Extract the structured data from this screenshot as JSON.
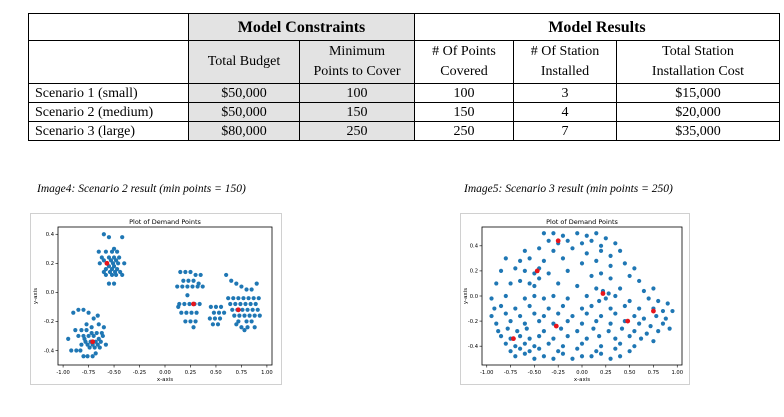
{
  "table": {
    "group_headers": {
      "constraints": "Model Constraints",
      "results": "Model Results"
    },
    "columns": [
      {
        "lines": [
          "Total Budget"
        ]
      },
      {
        "lines": [
          "Minimum",
          "Points to Cover"
        ]
      },
      {
        "lines": [
          "# Of Points",
          "Covered"
        ]
      },
      {
        "lines": [
          "# Of Station",
          "Installed"
        ]
      },
      {
        "lines": [
          "Total Station",
          "Installation Cost"
        ]
      }
    ],
    "rows": [
      {
        "label": "Scenario 1 (small)",
        "cells": [
          "$50,000",
          "100",
          "100",
          "3",
          "$15,000"
        ]
      },
      {
        "label": "Scenario 2 (medium)",
        "cells": [
          "$50,000",
          "150",
          "150",
          "4",
          "$20,000"
        ]
      },
      {
        "label": "Scenario 3 (large)",
        "cells": [
          "$80,000",
          "250",
          "250",
          "7",
          "$35,000"
        ]
      }
    ]
  },
  "captions": {
    "left": "Image4: Scenario 2 result (min points = 150)",
    "right": "Image5: Scenario 3 result (min points = 250)"
  },
  "colors": {
    "point": "#1f77b4",
    "station": "#e8151b",
    "grey_header": "#e3e3e3"
  },
  "chart_data": [
    {
      "type": "scatter",
      "title": "Plot of Demand Points",
      "xlabel": "x-axis",
      "ylabel": "y-axis",
      "xlim": [
        -1.05,
        1.05
      ],
      "ylim": [
        -0.5,
        0.45
      ],
      "x_ticks": [
        "-1.00",
        "-0.75",
        "-0.50",
        "-0.25",
        "0.00",
        "0.25",
        "0.50",
        "0.75",
        "1.00"
      ],
      "x_tick_values": [
        -1,
        -0.75,
        -0.5,
        -0.25,
        0,
        0.25,
        0.5,
        0.75,
        1
      ],
      "y_ticks": [
        "0.4",
        "0.2",
        "0.0",
        "-0.2",
        "-0.4"
      ],
      "y_tick_values": [
        0.4,
        0.2,
        0,
        -0.2,
        -0.4
      ],
      "series": [
        {
          "x": [
            -0.6,
            -0.55,
            -0.42,
            -0.5,
            -0.65,
            -0.58,
            -0.52,
            -0.47,
            -0.62,
            -0.55,
            -0.5,
            -0.45,
            -0.6,
            -0.53,
            -0.48,
            -0.64,
            -0.57,
            -0.51,
            -0.46,
            -0.4,
            -0.55,
            -0.5,
            -0.58,
            -0.52,
            -0.47,
            -0.6,
            -0.54,
            -0.49,
            -0.44,
            -0.58,
            -0.52,
            -0.48,
            -0.42,
            -0.55,
            -0.5,
            -0.9,
            -0.85,
            -0.8,
            -0.75,
            -0.7,
            -0.65,
            -0.6,
            -0.88,
            -0.82,
            -0.77,
            -0.72,
            -0.67,
            -0.62,
            -0.85,
            -0.8,
            -0.75,
            -0.7,
            -0.65,
            -0.78,
            -0.73,
            -0.68,
            -0.63,
            -0.82,
            -0.76,
            -0.71,
            -0.66,
            -0.95,
            -0.92,
            -0.87,
            -0.83,
            -0.74,
            -0.69,
            -0.64,
            -0.58,
            -0.8,
            -0.76,
            -0.71,
            -0.68,
            -0.61,
            -0.79,
            -0.72,
            -0.77,
            -0.66,
            0.15,
            0.2,
            0.25,
            0.3,
            0.35,
            0.18,
            0.23,
            0.28,
            0.33,
            0.12,
            0.17,
            0.22,
            0.27,
            0.32,
            0.37,
            0.14,
            0.19,
            0.24,
            0.29,
            0.34,
            0.16,
            0.21,
            0.26,
            0.31,
            0.2,
            0.25,
            0.3,
            0.13,
            0.22,
            0.28,
            0.45,
            0.5,
            0.55,
            0.48,
            0.53,
            0.58,
            0.44,
            0.49,
            0.54,
            0.47,
            0.52,
            0.6,
            0.65,
            0.7,
            0.75,
            0.8,
            0.85,
            0.9,
            0.62,
            0.67,
            0.72,
            0.77,
            0.82,
            0.87,
            0.92,
            0.64,
            0.69,
            0.74,
            0.79,
            0.84,
            0.89,
            0.66,
            0.71,
            0.76,
            0.81,
            0.86,
            0.91,
            0.68,
            0.73,
            0.78,
            0.83,
            0.88,
            0.93,
            0.72,
            0.8,
            0.85,
            0.75,
            0.81,
            0.88,
            0.7,
            0.78
          ],
          "y": [
            0.4,
            0.38,
            0.38,
            0.3,
            0.28,
            0.28,
            0.28,
            0.28,
            0.24,
            0.24,
            0.24,
            0.24,
            0.22,
            0.22,
            0.22,
            0.2,
            0.2,
            0.2,
            0.2,
            0.2,
            0.18,
            0.18,
            0.16,
            0.16,
            0.16,
            0.14,
            0.14,
            0.14,
            0.14,
            0.12,
            0.12,
            0.12,
            0.12,
            0.06,
            0.06,
            -0.14,
            -0.12,
            -0.12,
            -0.14,
            -0.18,
            -0.22,
            -0.24,
            -0.26,
            -0.26,
            -0.26,
            -0.28,
            -0.28,
            -0.28,
            -0.3,
            -0.3,
            -0.3,
            -0.3,
            -0.32,
            -0.34,
            -0.34,
            -0.34,
            -0.34,
            -0.36,
            -0.36,
            -0.36,
            -0.36,
            -0.32,
            -0.4,
            -0.4,
            -0.4,
            -0.38,
            -0.38,
            -0.38,
            -0.36,
            -0.44,
            -0.44,
            -0.44,
            -0.42,
            -0.3,
            -0.32,
            -0.24,
            -0.22,
            -0.16,
            0.14,
            0.14,
            0.14,
            0.12,
            0.12,
            0.08,
            0.08,
            0.08,
            0.06,
            0.04,
            0.04,
            0.04,
            0.04,
            0.04,
            0.04,
            -0.08,
            -0.08,
            -0.08,
            -0.08,
            -0.08,
            -0.14,
            -0.14,
            -0.14,
            -0.14,
            -0.2,
            -0.2,
            -0.2,
            -0.1,
            -0.02,
            -0.24,
            -0.1,
            -0.1,
            -0.1,
            -0.14,
            -0.14,
            -0.14,
            -0.18,
            -0.18,
            -0.18,
            -0.22,
            -0.22,
            0.12,
            0.08,
            0.06,
            0.04,
            0.02,
            0.02,
            0.06,
            -0.04,
            -0.04,
            -0.04,
            -0.04,
            -0.04,
            -0.04,
            -0.04,
            -0.08,
            -0.08,
            -0.08,
            -0.08,
            -0.08,
            -0.08,
            -0.12,
            -0.12,
            -0.12,
            -0.12,
            -0.12,
            -0.12,
            -0.16,
            -0.16,
            -0.16,
            -0.16,
            -0.16,
            -0.16,
            -0.2,
            -0.2,
            -0.2,
            -0.24,
            -0.24,
            -0.24,
            -0.22,
            -0.26
          ]
        },
        {
          "x": [
            -0.57,
            -0.71,
            0.28,
            0.72
          ],
          "y": [
            0.2,
            -0.34,
            -0.08,
            -0.12
          ]
        }
      ]
    },
    {
      "type": "scatter",
      "title": "Plot of Demand Points",
      "xlabel": "x-axis",
      "ylabel": "y-axis",
      "xlim": [
        -1.05,
        1.05
      ],
      "ylim": [
        -0.55,
        0.55
      ],
      "x_ticks": [
        "-1.00",
        "-0.75",
        "-0.50",
        "-0.25",
        "0.00",
        "0.25",
        "0.50",
        "0.75",
        "1.00"
      ],
      "x_tick_values": [
        -1,
        -0.75,
        -0.5,
        -0.25,
        0,
        0.25,
        0.5,
        0.75,
        1
      ],
      "y_ticks": [
        "0.4",
        "0.2",
        "0.0",
        "-0.2",
        "-0.4"
      ],
      "y_tick_values": [
        0.4,
        0.2,
        0,
        -0.2,
        -0.4
      ],
      "series": [
        {
          "x": [
            -0.4,
            -0.3,
            -0.2,
            -0.05,
            0.05,
            0.15,
            0.25,
            -0.35,
            -0.25,
            -0.15,
            0.0,
            0.1,
            0.2,
            0.35,
            -0.6,
            -0.45,
            -0.3,
            -0.1,
            0.05,
            0.2,
            0.3,
            0.4,
            -0.8,
            -0.65,
            -0.55,
            -0.4,
            -0.2,
            0.0,
            0.15,
            0.3,
            0.45,
            0.55,
            -0.85,
            -0.7,
            -0.6,
            -0.5,
            -0.45,
            -0.35,
            -0.15,
            0.1,
            0.2,
            0.3,
            0.5,
            0.6,
            -0.9,
            -0.75,
            -0.65,
            -0.55,
            -0.5,
            -0.45,
            -0.25,
            -0.05,
            0.15,
            0.22,
            0.28,
            0.4,
            0.65,
            0.75,
            -0.95,
            -0.8,
            -0.6,
            -0.5,
            -0.4,
            -0.3,
            -0.15,
            0.05,
            0.18,
            0.25,
            0.35,
            0.5,
            0.7,
            0.8,
            0.9,
            -0.92,
            -0.85,
            -0.7,
            -0.55,
            -0.35,
            -0.2,
            0.0,
            0.1,
            0.3,
            0.45,
            0.6,
            0.75,
            0.85,
            0.95,
            -0.95,
            -0.8,
            -0.65,
            -0.5,
            -0.4,
            -0.25,
            -0.1,
            0.05,
            0.2,
            0.35,
            0.55,
            0.65,
            0.78,
            0.88,
            -0.9,
            -0.75,
            -0.6,
            -0.45,
            -0.3,
            -0.15,
            0.0,
            0.15,
            0.3,
            0.45,
            0.6,
            0.72,
            0.85,
            0.92,
            -0.88,
            -0.78,
            -0.68,
            -0.58,
            -0.4,
            -0.22,
            -0.05,
            0.12,
            0.28,
            0.42,
            0.55,
            0.68,
            0.8,
            -0.85,
            -0.75,
            -0.65,
            -0.55,
            -0.45,
            -0.3,
            -0.15,
            0.05,
            0.18,
            0.35,
            0.5,
            0.62,
            0.75,
            -0.8,
            -0.7,
            -0.6,
            -0.5,
            -0.35,
            -0.2,
            0.0,
            0.2,
            0.4,
            0.55,
            -0.75,
            -0.65,
            -0.55,
            -0.45,
            -0.25,
            -0.05,
            0.15,
            0.35,
            0.5,
            -0.7,
            -0.6,
            -0.4,
            -0.2,
            0.0,
            0.2,
            0.4,
            -0.5,
            -0.3,
            -0.1,
            0.1,
            0.3
          ],
          "y": [
            0.5,
            0.5,
            0.48,
            0.5,
            0.48,
            0.5,
            0.46,
            0.44,
            0.42,
            0.44,
            0.42,
            0.44,
            0.4,
            0.42,
            0.36,
            0.38,
            0.36,
            0.38,
            0.34,
            0.36,
            0.32,
            0.36,
            0.3,
            0.28,
            0.3,
            0.28,
            0.3,
            0.26,
            0.28,
            0.24,
            0.26,
            0.22,
            0.2,
            0.22,
            0.2,
            0.18,
            0.22,
            0.18,
            0.2,
            0.16,
            0.18,
            0.14,
            0.16,
            0.12,
            0.1,
            0.1,
            0.12,
            0.1,
            0.08,
            0.14,
            0.1,
            0.08,
            0.06,
            0.04,
            0.02,
            0.06,
            0.04,
            0.06,
            -0.02,
            0.0,
            -0.02,
            0.0,
            -0.02,
            0.0,
            -0.02,
            0.0,
            -0.04,
            -0.02,
            0.0,
            -0.04,
            -0.02,
            -0.04,
            -0.06,
            -0.1,
            -0.08,
            -0.1,
            -0.08,
            -0.1,
            -0.08,
            -0.1,
            -0.08,
            -0.1,
            -0.08,
            -0.1,
            -0.1,
            -0.12,
            -0.12,
            -0.16,
            -0.14,
            -0.16,
            -0.14,
            -0.16,
            -0.14,
            -0.16,
            -0.14,
            -0.16,
            -0.14,
            -0.16,
            -0.18,
            -0.16,
            -0.18,
            -0.22,
            -0.2,
            -0.22,
            -0.2,
            -0.22,
            -0.2,
            -0.22,
            -0.2,
            -0.22,
            -0.2,
            -0.22,
            -0.24,
            -0.22,
            -0.26,
            -0.28,
            -0.26,
            -0.28,
            -0.26,
            -0.28,
            -0.26,
            -0.28,
            -0.26,
            -0.28,
            -0.26,
            -0.28,
            -0.3,
            -0.28,
            -0.32,
            -0.34,
            -0.32,
            -0.34,
            -0.32,
            -0.34,
            -0.32,
            -0.34,
            -0.32,
            -0.34,
            -0.32,
            -0.34,
            -0.36,
            -0.38,
            -0.4,
            -0.38,
            -0.4,
            -0.38,
            -0.4,
            -0.38,
            -0.4,
            -0.38,
            -0.4,
            -0.44,
            -0.42,
            -0.44,
            -0.42,
            -0.44,
            -0.42,
            -0.44,
            -0.42,
            -0.44,
            -0.48,
            -0.46,
            -0.48,
            -0.46,
            -0.48,
            -0.46,
            -0.48,
            -0.5,
            -0.5,
            -0.5,
            -0.48,
            -0.5
          ]
        },
        {
          "x": [
            -0.25,
            -0.47,
            0.22,
            -0.72,
            -0.27,
            0.48,
            0.75
          ],
          "y": [
            0.44,
            0.2,
            0.02,
            -0.34,
            -0.24,
            -0.2,
            -0.12
          ]
        }
      ]
    }
  ]
}
